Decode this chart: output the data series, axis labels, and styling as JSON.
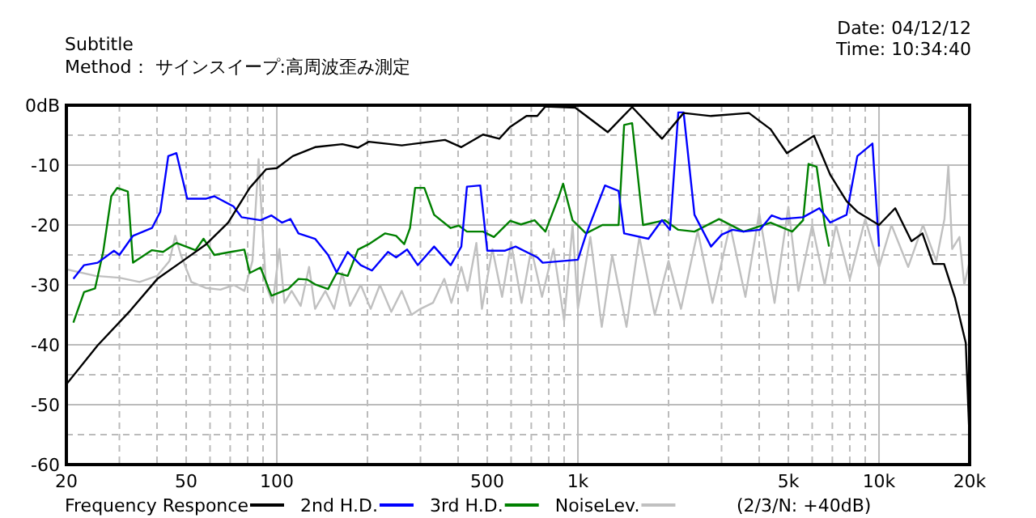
{
  "chart_data": {
    "type": "line",
    "subtitle": "Subtitle",
    "annotations": [
      "Method： サインスイープ:高周波歪み測定",
      "Date: 04/12/12",
      "Time: 10:34:40",
      "(2/3/N: +40dB)"
    ],
    "log": "x",
    "grid": true,
    "legend": "bottom",
    "line_style": "solid",
    "marker": "none",
    "xlim": [
      20,
      20000
    ],
    "ylim": [
      -60,
      0
    ],
    "xticks": [
      20,
      {
        "value": 30,
        "label": null
      },
      {
        "value": 40,
        "label": null
      },
      50,
      {
        "value": 60,
        "label": null
      },
      {
        "value": 70,
        "label": null
      },
      {
        "value": 80,
        "label": null
      },
      {
        "value": 90,
        "label": null
      },
      100,
      {
        "value": 200,
        "label": null
      },
      {
        "value": 300,
        "label": null
      },
      {
        "value": 400,
        "label": null
      },
      500,
      {
        "value": 600,
        "label": null
      },
      {
        "value": 700,
        "label": null
      },
      {
        "value": 800,
        "label": null
      },
      {
        "value": 900,
        "label": null
      },
      {
        "value": 1000,
        "label": "1k"
      },
      {
        "value": 2000,
        "label": null
      },
      {
        "value": 3000,
        "label": null
      },
      {
        "value": 4000,
        "label": null
      },
      {
        "value": 5000,
        "label": "5k"
      },
      {
        "value": 6000,
        "label": null
      },
      {
        "value": 7000,
        "label": null
      },
      {
        "value": 8000,
        "label": null
      },
      {
        "value": 9000,
        "label": null
      },
      {
        "value": 10000,
        "label": "10k"
      },
      {
        "value": 20000,
        "label": "20k"
      }
    ],
    "yticks": [
      {
        "value": 0,
        "label": "0dB"
      },
      {
        "value": -5,
        "label": null
      },
      -10,
      {
        "value": -15,
        "label": null
      },
      -20,
      {
        "value": -25,
        "label": null
      },
      -30,
      {
        "value": -35,
        "label": null
      },
      -40,
      {
        "value": -45,
        "label": null
      },
      -50,
      {
        "value": -55,
        "label": null
      },
      -60
    ],
    "series": [
      {
        "name": "NoiseLev.",
        "color": "#c0c0c0",
        "x": [
          20,
          25,
          30,
          35,
          40,
          44,
          46,
          48,
          52,
          58,
          65,
          72,
          78,
          83,
          87,
          89,
          92,
          97,
          102,
          106,
          112,
          120,
          128,
          134,
          145,
          155,
          165,
          175,
          190,
          205,
          220,
          240,
          260,
          280,
          300,
          330,
          360,
          380,
          410,
          430,
          460,
          480,
          520,
          560,
          600,
          650,
          700,
          760,
          830,
          900,
          960,
          1000,
          1100,
          1200,
          1300,
          1450,
          1600,
          1800,
          2000,
          2200,
          2500,
          2800,
          3200,
          3600,
          4000,
          4500,
          5000,
          5400,
          6000,
          6600,
          7200,
          8000,
          9000,
          10000,
          11000,
          12500,
          14000,
          15500,
          16500,
          17000,
          17500,
          18500,
          19200,
          20000
        ],
        "values": [
          -27.4,
          -28.5,
          -28.8,
          -29.5,
          -28.5,
          -26,
          -21.8,
          -25,
          -29.5,
          -30.5,
          -30.8,
          -30,
          -31,
          -26,
          -9,
          -18,
          -30,
          -33,
          -24,
          -33,
          -31,
          -33.5,
          -27,
          -34,
          -31,
          -34,
          -28,
          -33.5,
          -30,
          -34,
          -30,
          -34.5,
          -31,
          -35,
          -34,
          -33,
          -29,
          -33,
          -27,
          -31,
          -23,
          -34,
          -24,
          -32,
          -23,
          -33,
          -24,
          -32,
          -24,
          -36,
          -20,
          -34,
          -22,
          -37,
          -25,
          -37,
          -22,
          -35,
          -26,
          -34,
          -21,
          -33,
          -20,
          -32,
          -18,
          -33,
          -17,
          -31,
          -20,
          -30,
          -20,
          -29,
          -19,
          -27,
          -20,
          -27,
          -20,
          -26,
          -19,
          -10,
          -24,
          -22,
          -30,
          -26
        ]
      },
      {
        "name": "3rd H.D.",
        "color": "#008000",
        "x": [
          21.1,
          22.9,
          24.9,
          26.5,
          28.2,
          29.5,
          32,
          33.3,
          38.5,
          41.9,
          46.4,
          53.7,
          57.1,
          62,
          70.3,
          78,
          81.3,
          88.3,
          96,
          109,
          118,
          126,
          134,
          148,
          158,
          172,
          186,
          202,
          229,
          249,
          265,
          277,
          288,
          309,
          333,
          378,
          402,
          428,
          484,
          526,
          596,
          647,
          718,
          780,
          865,
          893,
          960,
          1064,
          1206,
          1365,
          1424,
          1514,
          1646,
          1942,
          2155,
          2439,
          2943,
          3548,
          4364,
          5151,
          5596,
          5834,
          6208,
          6607,
          6826
        ],
        "values": [
          -36.3,
          -31.2,
          -30.6,
          -24.5,
          -15.2,
          -13.8,
          -14.4,
          -26.3,
          -24.2,
          -24.5,
          -23,
          -24.2,
          -22.3,
          -25,
          -24.5,
          -24.1,
          -28,
          -27.1,
          -31.8,
          -30.7,
          -29,
          -29.1,
          -29.9,
          -30.7,
          -28,
          -28.5,
          -24.1,
          -23.2,
          -21.4,
          -21.8,
          -23.2,
          -20.5,
          -13.8,
          -13.8,
          -18.3,
          -20.5,
          -20.1,
          -21.1,
          -21.1,
          -22,
          -19.3,
          -19.9,
          -19.2,
          -21.1,
          -15.2,
          -13.1,
          -19.2,
          -21.4,
          -20,
          -20,
          -3.3,
          -3,
          -20,
          -19.2,
          -20.8,
          -21.1,
          -19,
          -21.1,
          -19.6,
          -21.1,
          -19.2,
          -9.8,
          -10.3,
          -20,
          -23.6
        ]
      },
      {
        "name": "2nd H.D.",
        "color": "#0000ff",
        "x": [
          21.1,
          22.9,
          25.4,
          28.8,
          30,
          33.3,
          38.5,
          41,
          43.6,
          46.4,
          50.4,
          58.3,
          62,
          71.8,
          76.4,
          88.3,
          96,
          104,
          111,
          118,
          134,
          148,
          158,
          172,
          190,
          207,
          234,
          249,
          271,
          294,
          333,
          378,
          410,
          428,
          474,
          500,
          571,
          621,
          733,
          764,
          1000,
          1064,
          1230,
          1365,
          1424,
          1715,
          1902,
          2023,
          2155,
          2244,
          2439,
          2767,
          3004,
          3265,
          3548,
          4018,
          4398,
          4740,
          5596,
          6338,
          6886,
          7800,
          8475,
          9514,
          10000
        ],
        "values": [
          -29,
          -26.7,
          -26.3,
          -24.3,
          -25,
          -21.8,
          -20.5,
          -17.8,
          -8.5,
          -8,
          -15.6,
          -15.6,
          -15.2,
          -16.9,
          -18.7,
          -19.2,
          -18.4,
          -19.6,
          -19,
          -21.4,
          -22.3,
          -25,
          -27.9,
          -24.5,
          -26.7,
          -27.6,
          -24.5,
          -25.4,
          -24.1,
          -26.7,
          -23.6,
          -26.7,
          -23.6,
          -13.6,
          -13.4,
          -24.3,
          -24.3,
          -23.6,
          -25.4,
          -26.3,
          -25.8,
          -21.6,
          -13.4,
          -14.3,
          -21.4,
          -22.3,
          -19.2,
          -20.8,
          -1.2,
          -1.2,
          -18.3,
          -23.6,
          -21.6,
          -20.8,
          -21.1,
          -20.8,
          -18.4,
          -19,
          -18.7,
          -17.2,
          -19.6,
          -18.3,
          -8.5,
          -6.4,
          -23.6
        ]
      },
      {
        "name": "Frequency Responce",
        "color": "#000000",
        "x": [
          20,
          25.4,
          32.6,
          40.1,
          48.4,
          58.3,
          68.9,
          81.3,
          92.1,
          100,
          113,
          134,
          165,
          186,
          202,
          260,
          362,
          410,
          484,
          548,
          596,
          675,
          733,
          780,
          980,
          1256,
          1514,
          1902,
          2244,
          2767,
          3698,
          4364,
          4944,
          6080,
          6886,
          7800,
          8475,
          10000,
          11320,
          12820,
          13940,
          15140,
          16450,
          17870,
          19420,
          19900
        ],
        "values": [
          -46.6,
          -40.1,
          -34.3,
          -29,
          -26.1,
          -23.2,
          -19.6,
          -13.8,
          -10.7,
          -10.5,
          -8.5,
          -7,
          -6.5,
          -7.1,
          -6.1,
          -6.7,
          -5.8,
          -7,
          -4.9,
          -5.6,
          -3.6,
          -1.8,
          -1.8,
          -0.2,
          -0.4,
          -4.5,
          -0.3,
          -5.6,
          -1.3,
          -1.8,
          -1.3,
          -4,
          -8,
          -5.1,
          -11.6,
          -16,
          -17.8,
          -20,
          -17.2,
          -22.7,
          -21.4,
          -26.5,
          -26.5,
          -32.1,
          -39.7,
          -53.5
        ]
      }
    ]
  }
}
